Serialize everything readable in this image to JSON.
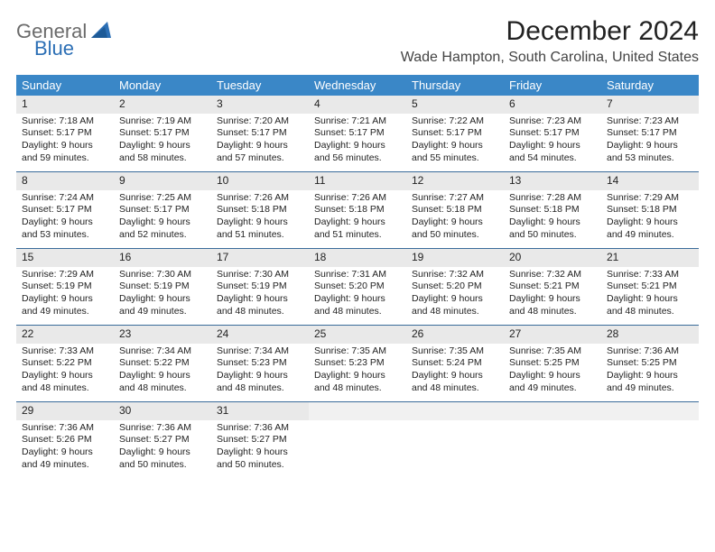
{
  "logo": {
    "word1": "General",
    "word2": "Blue"
  },
  "colors": {
    "header_bar": "#3a87c7",
    "week_divider": "#3a6c9a",
    "daynum_bg": "#e9e9e9",
    "logo_gray": "#6b6b6b",
    "logo_blue": "#2c6fb5"
  },
  "title": "December 2024",
  "location": "Wade Hampton, South Carolina, United States",
  "dow": [
    "Sunday",
    "Monday",
    "Tuesday",
    "Wednesday",
    "Thursday",
    "Friday",
    "Saturday"
  ],
  "labels": {
    "sunrise": "Sunrise:",
    "sunset": "Sunset:",
    "daylight1": "Daylight:",
    "and": "and"
  },
  "days": [
    {
      "n": "1",
      "sr": "7:18 AM",
      "ss": "5:17 PM",
      "dh": "9 hours",
      "dm": "59 minutes."
    },
    {
      "n": "2",
      "sr": "7:19 AM",
      "ss": "5:17 PM",
      "dh": "9 hours",
      "dm": "58 minutes."
    },
    {
      "n": "3",
      "sr": "7:20 AM",
      "ss": "5:17 PM",
      "dh": "9 hours",
      "dm": "57 minutes."
    },
    {
      "n": "4",
      "sr": "7:21 AM",
      "ss": "5:17 PM",
      "dh": "9 hours",
      "dm": "56 minutes."
    },
    {
      "n": "5",
      "sr": "7:22 AM",
      "ss": "5:17 PM",
      "dh": "9 hours",
      "dm": "55 minutes."
    },
    {
      "n": "6",
      "sr": "7:23 AM",
      "ss": "5:17 PM",
      "dh": "9 hours",
      "dm": "54 minutes."
    },
    {
      "n": "7",
      "sr": "7:23 AM",
      "ss": "5:17 PM",
      "dh": "9 hours",
      "dm": "53 minutes."
    },
    {
      "n": "8",
      "sr": "7:24 AM",
      "ss": "5:17 PM",
      "dh": "9 hours",
      "dm": "53 minutes."
    },
    {
      "n": "9",
      "sr": "7:25 AM",
      "ss": "5:17 PM",
      "dh": "9 hours",
      "dm": "52 minutes."
    },
    {
      "n": "10",
      "sr": "7:26 AM",
      "ss": "5:18 PM",
      "dh": "9 hours",
      "dm": "51 minutes."
    },
    {
      "n": "11",
      "sr": "7:26 AM",
      "ss": "5:18 PM",
      "dh": "9 hours",
      "dm": "51 minutes."
    },
    {
      "n": "12",
      "sr": "7:27 AM",
      "ss": "5:18 PM",
      "dh": "9 hours",
      "dm": "50 minutes."
    },
    {
      "n": "13",
      "sr": "7:28 AM",
      "ss": "5:18 PM",
      "dh": "9 hours",
      "dm": "50 minutes."
    },
    {
      "n": "14",
      "sr": "7:29 AM",
      "ss": "5:18 PM",
      "dh": "9 hours",
      "dm": "49 minutes."
    },
    {
      "n": "15",
      "sr": "7:29 AM",
      "ss": "5:19 PM",
      "dh": "9 hours",
      "dm": "49 minutes."
    },
    {
      "n": "16",
      "sr": "7:30 AM",
      "ss": "5:19 PM",
      "dh": "9 hours",
      "dm": "49 minutes."
    },
    {
      "n": "17",
      "sr": "7:30 AM",
      "ss": "5:19 PM",
      "dh": "9 hours",
      "dm": "48 minutes."
    },
    {
      "n": "18",
      "sr": "7:31 AM",
      "ss": "5:20 PM",
      "dh": "9 hours",
      "dm": "48 minutes."
    },
    {
      "n": "19",
      "sr": "7:32 AM",
      "ss": "5:20 PM",
      "dh": "9 hours",
      "dm": "48 minutes."
    },
    {
      "n": "20",
      "sr": "7:32 AM",
      "ss": "5:21 PM",
      "dh": "9 hours",
      "dm": "48 minutes."
    },
    {
      "n": "21",
      "sr": "7:33 AM",
      "ss": "5:21 PM",
      "dh": "9 hours",
      "dm": "48 minutes."
    },
    {
      "n": "22",
      "sr": "7:33 AM",
      "ss": "5:22 PM",
      "dh": "9 hours",
      "dm": "48 minutes."
    },
    {
      "n": "23",
      "sr": "7:34 AM",
      "ss": "5:22 PM",
      "dh": "9 hours",
      "dm": "48 minutes."
    },
    {
      "n": "24",
      "sr": "7:34 AM",
      "ss": "5:23 PM",
      "dh": "9 hours",
      "dm": "48 minutes."
    },
    {
      "n": "25",
      "sr": "7:35 AM",
      "ss": "5:23 PM",
      "dh": "9 hours",
      "dm": "48 minutes."
    },
    {
      "n": "26",
      "sr": "7:35 AM",
      "ss": "5:24 PM",
      "dh": "9 hours",
      "dm": "48 minutes."
    },
    {
      "n": "27",
      "sr": "7:35 AM",
      "ss": "5:25 PM",
      "dh": "9 hours",
      "dm": "49 minutes."
    },
    {
      "n": "28",
      "sr": "7:36 AM",
      "ss": "5:25 PM",
      "dh": "9 hours",
      "dm": "49 minutes."
    },
    {
      "n": "29",
      "sr": "7:36 AM",
      "ss": "5:26 PM",
      "dh": "9 hours",
      "dm": "49 minutes."
    },
    {
      "n": "30",
      "sr": "7:36 AM",
      "ss": "5:27 PM",
      "dh": "9 hours",
      "dm": "50 minutes."
    },
    {
      "n": "31",
      "sr": "7:36 AM",
      "ss": "5:27 PM",
      "dh": "9 hours",
      "dm": "50 minutes."
    }
  ],
  "leading_blanks": 0,
  "trailing_blanks": 4
}
